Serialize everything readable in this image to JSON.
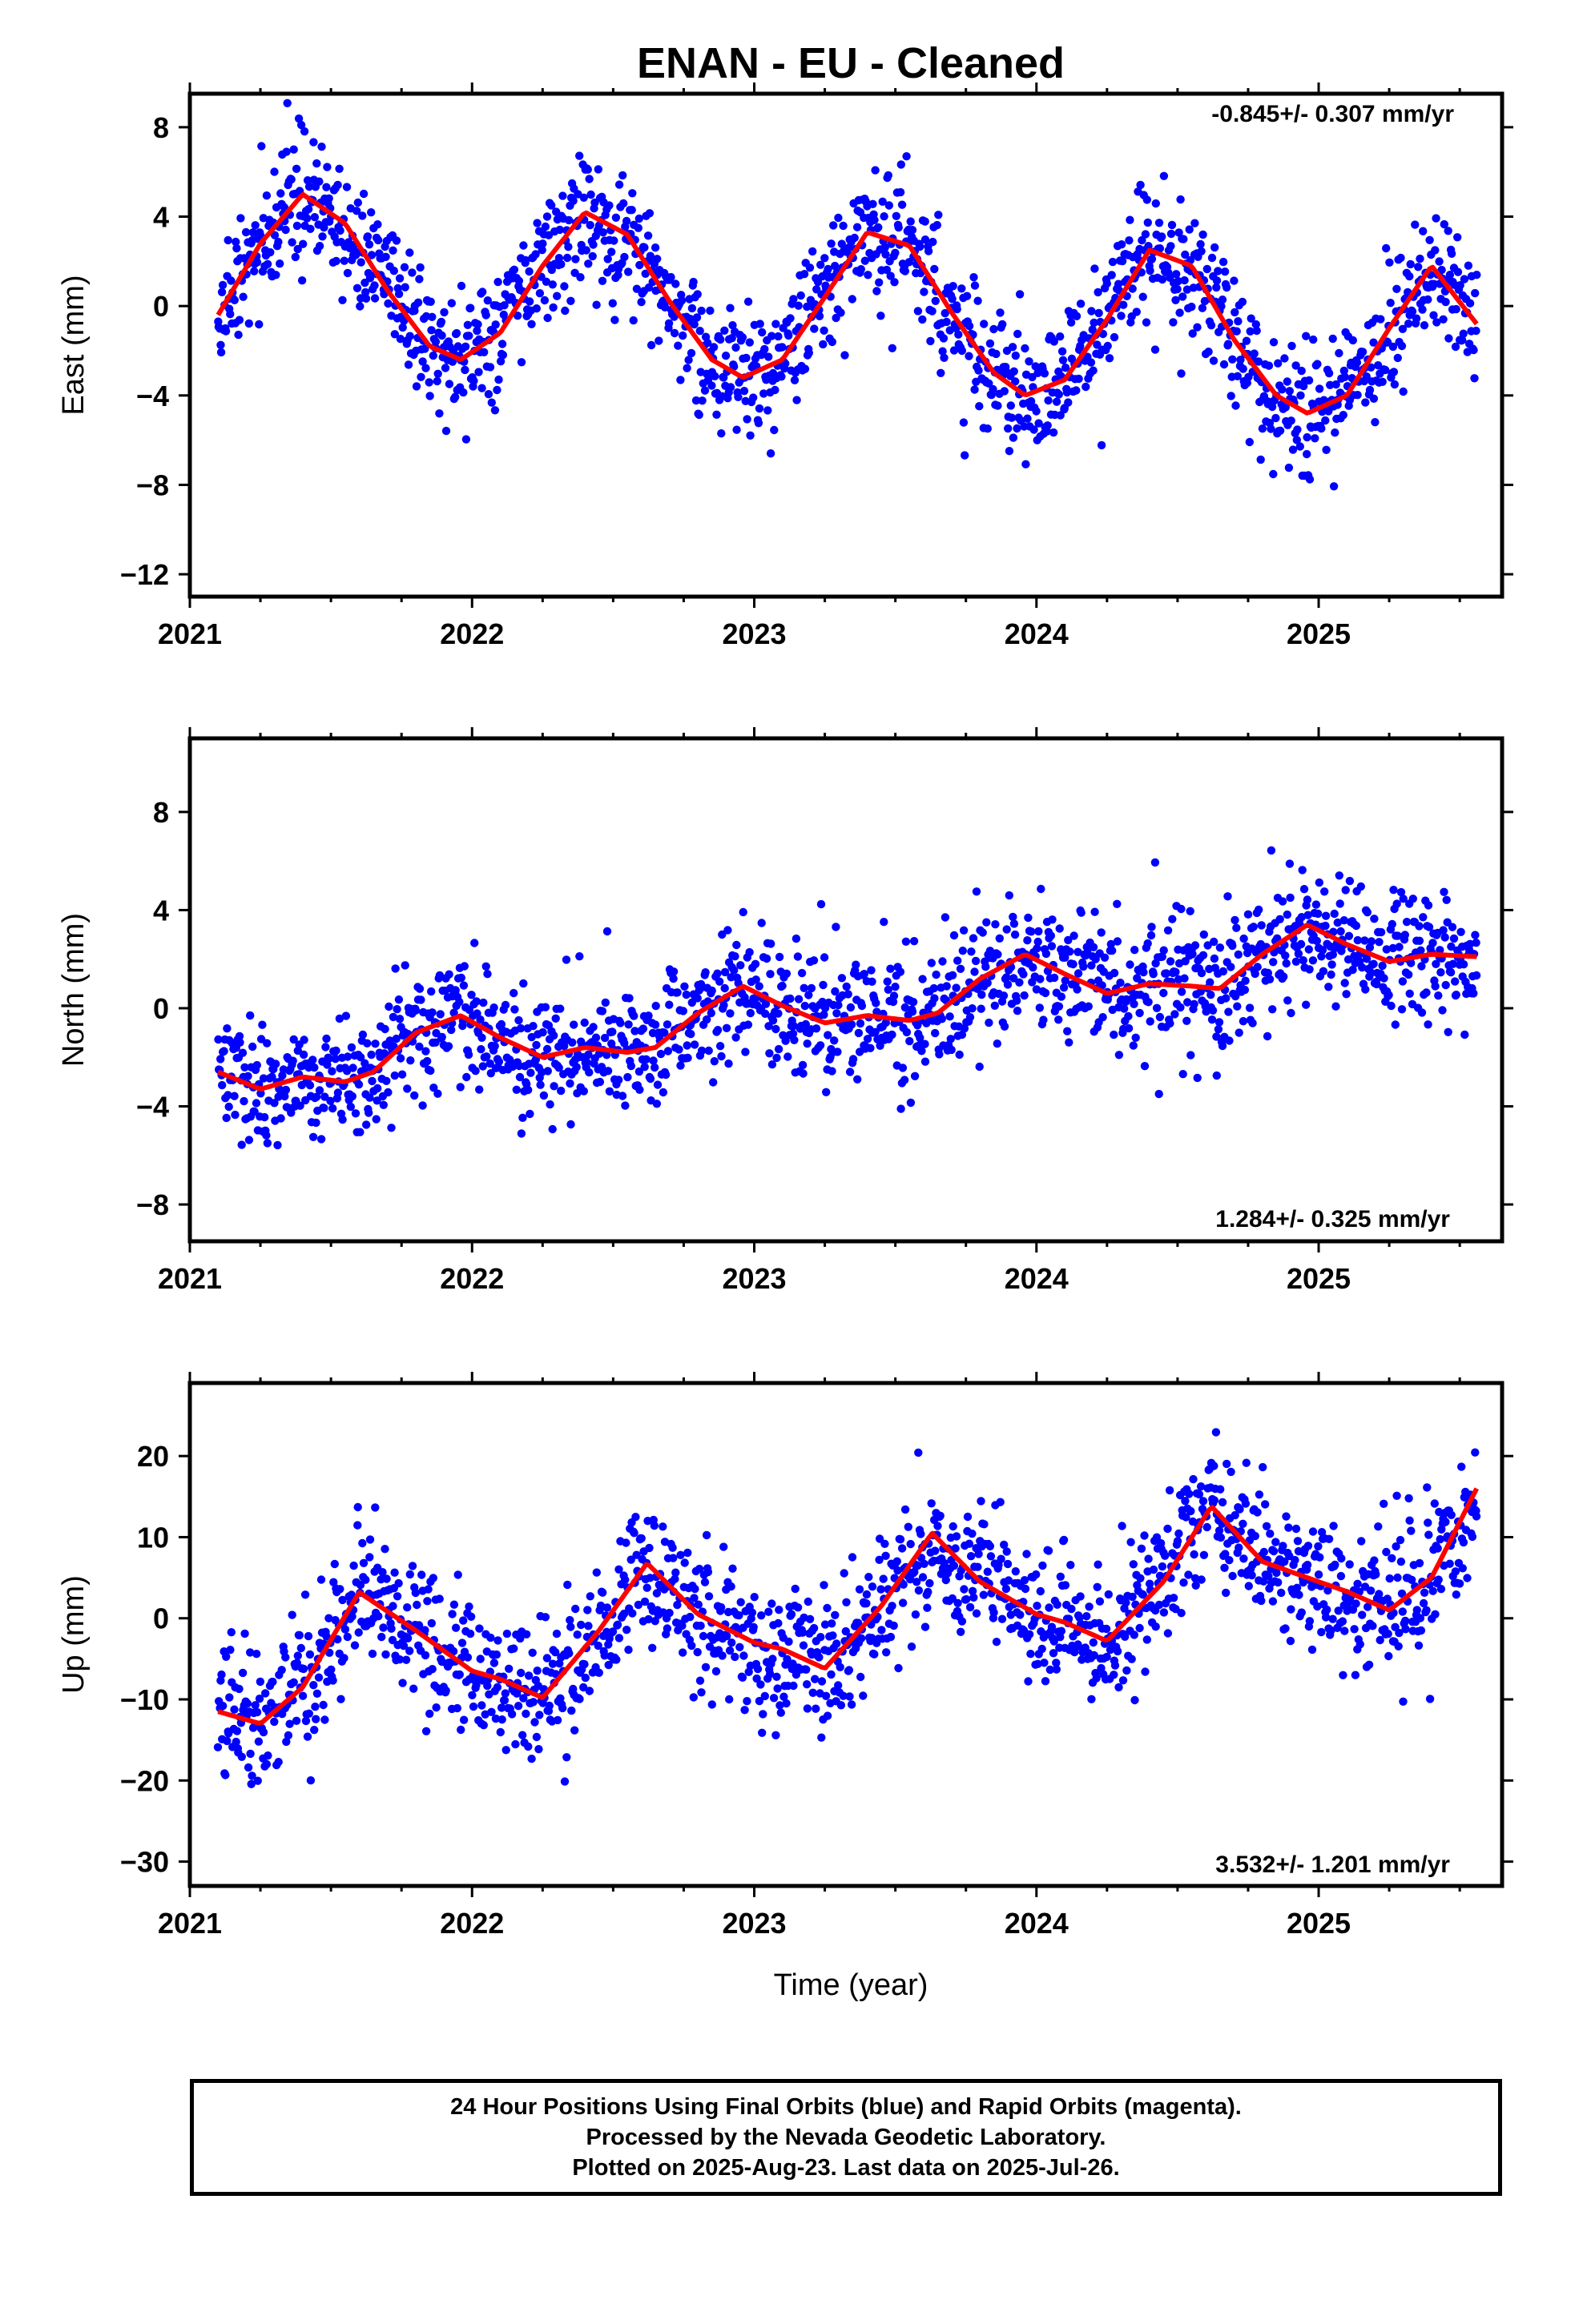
{
  "title": "ENAN  - EU - Cleaned",
  "colors": {
    "final_orbits": "#0000ff",
    "model_fit": "#ff0000",
    "frame": "#000000"
  },
  "xlabel": "Time (year)",
  "caption": [
    "24 Hour Positions Using Final Orbits (blue) and Rapid Orbits (magenta).",
    "Processed by the Nevada Geodetic Laboratory.",
    "Plotted on 2025-Aug-23. Last data on 2025-Jul-26."
  ],
  "chart_data": [
    {
      "type": "scatter",
      "component": "east",
      "ylabel": "East (mm)",
      "rate_text": "-0.845+/- 0.307 mm/yr",
      "rate_mm_per_yr": -0.845,
      "rate_sigma": 0.307,
      "xlim": [
        2021.0,
        2025.65
      ],
      "ylim": [
        -13,
        9.5
      ],
      "xticks": [
        2021,
        2022,
        2023,
        2024,
        2025
      ],
      "xtick_labels": [
        "2021",
        "2022",
        "2023",
        "2024",
        "2025"
      ],
      "yticks": [
        -12,
        -8,
        -4,
        0,
        4,
        8
      ],
      "ytick_labels": [
        "−12",
        "−8",
        "−4",
        "0",
        "4",
        "8"
      ],
      "data_start": 2021.1,
      "data_end": 2025.56,
      "series": [
        {
          "name": "Final Orbits",
          "kind": "points",
          "scatter_sigma": 1.4
        },
        {
          "name": "Model fit",
          "kind": "line",
          "x": [
            2021.1,
            2021.25,
            2021.4,
            2021.55,
            2021.7,
            2021.85,
            2021.96,
            2022.1,
            2022.25,
            2022.4,
            2022.55,
            2022.7,
            2022.85,
            2022.96,
            2023.1,
            2023.25,
            2023.4,
            2023.55,
            2023.7,
            2023.85,
            2023.96,
            2024.1,
            2024.25,
            2024.4,
            2024.55,
            2024.7,
            2024.85,
            2024.96,
            2025.1,
            2025.25,
            2025.4,
            2025.56
          ],
          "y": [
            -0.4,
            2.8,
            5.0,
            3.7,
            0.7,
            -1.8,
            -2.4,
            -1.2,
            1.8,
            4.2,
            3.2,
            0.2,
            -2.4,
            -3.2,
            -2.4,
            0.4,
            3.3,
            2.7,
            -0.3,
            -3.0,
            -4.0,
            -3.3,
            -0.6,
            2.5,
            1.8,
            -1.5,
            -4.0,
            -4.8,
            -4.0,
            -1.0,
            1.8,
            -0.8
          ]
        }
      ]
    },
    {
      "type": "scatter",
      "component": "north",
      "ylabel": "North (mm)",
      "rate_text": "1.284+/- 0.325 mm/yr",
      "rate_mm_per_yr": 1.284,
      "rate_sigma": 0.325,
      "xlim": [
        2021.0,
        2025.65
      ],
      "ylim": [
        -9.5,
        11
      ],
      "xticks": [
        2021,
        2022,
        2023,
        2024,
        2025
      ],
      "xtick_labels": [
        "2021",
        "2022",
        "2023",
        "2024",
        "2025"
      ],
      "yticks": [
        -8,
        -4,
        0,
        4,
        8
      ],
      "ytick_labels": [
        "−8",
        "−4",
        "0",
        "4",
        "8"
      ],
      "data_start": 2021.1,
      "data_end": 2025.56,
      "series": [
        {
          "name": "Final Orbits",
          "kind": "points",
          "scatter_sigma": 1.3
        },
        {
          "name": "Model fit",
          "kind": "line",
          "x": [
            2021.1,
            2021.25,
            2021.4,
            2021.55,
            2021.65,
            2021.8,
            2021.96,
            2022.1,
            2022.25,
            2022.4,
            2022.55,
            2022.65,
            2022.8,
            2022.96,
            2023.1,
            2023.25,
            2023.4,
            2023.55,
            2023.65,
            2023.8,
            2023.96,
            2024.1,
            2024.25,
            2024.4,
            2024.55,
            2024.65,
            2024.8,
            2024.96,
            2025.1,
            2025.25,
            2025.4,
            2025.56
          ],
          "y": [
            -2.6,
            -3.3,
            -2.8,
            -3.0,
            -2.6,
            -1.0,
            -0.3,
            -1.2,
            -2.0,
            -1.6,
            -1.8,
            -1.6,
            -0.2,
            0.9,
            0.1,
            -0.6,
            -0.3,
            -0.5,
            -0.2,
            1.2,
            2.2,
            1.4,
            0.6,
            1.0,
            0.9,
            0.8,
            2.2,
            3.4,
            2.6,
            1.9,
            2.2,
            2.1
          ]
        }
      ]
    },
    {
      "type": "scatter",
      "component": "up",
      "ylabel": "Up (mm)",
      "rate_text": "3.532+/- 1.201 mm/yr",
      "rate_mm_per_yr": 3.532,
      "rate_sigma": 1.201,
      "xlim": [
        2021.0,
        2025.65
      ],
      "ylim": [
        -33,
        29
      ],
      "xticks": [
        2021,
        2022,
        2023,
        2024,
        2025
      ],
      "xtick_labels": [
        "2021",
        "2022",
        "2023",
        "2024",
        "2025"
      ],
      "yticks": [
        -30,
        -20,
        -10,
        0,
        10,
        20
      ],
      "ytick_labels": [
        "−30",
        "−20",
        "−10",
        "0",
        "10",
        "20"
      ],
      "data_start": 2021.1,
      "data_end": 2025.56,
      "series": [
        {
          "name": "Final Orbits",
          "kind": "points",
          "scatter_sigma": 4.2
        },
        {
          "name": "Model fit",
          "kind": "line",
          "x": [
            2021.1,
            2021.25,
            2021.4,
            2021.6,
            2021.8,
            2022.0,
            2022.1,
            2022.25,
            2022.45,
            2022.62,
            2022.8,
            2023.0,
            2023.1,
            2023.25,
            2023.45,
            2023.63,
            2023.8,
            2024.0,
            2024.1,
            2024.25,
            2024.45,
            2024.62,
            2024.8,
            2025.0,
            2025.1,
            2025.25,
            2025.4,
            2025.56
          ],
          "y": [
            -11.5,
            -13.0,
            -8.5,
            3.2,
            -1.5,
            -6.5,
            -7.5,
            -9.8,
            -1.5,
            6.8,
            0.5,
            -3.0,
            -3.8,
            -6.2,
            1.5,
            10.5,
            4.5,
            0.5,
            -0.5,
            -2.8,
            4.5,
            13.8,
            7.0,
            4.5,
            3.3,
            1.0,
            5.0,
            16.0
          ]
        }
      ]
    }
  ]
}
